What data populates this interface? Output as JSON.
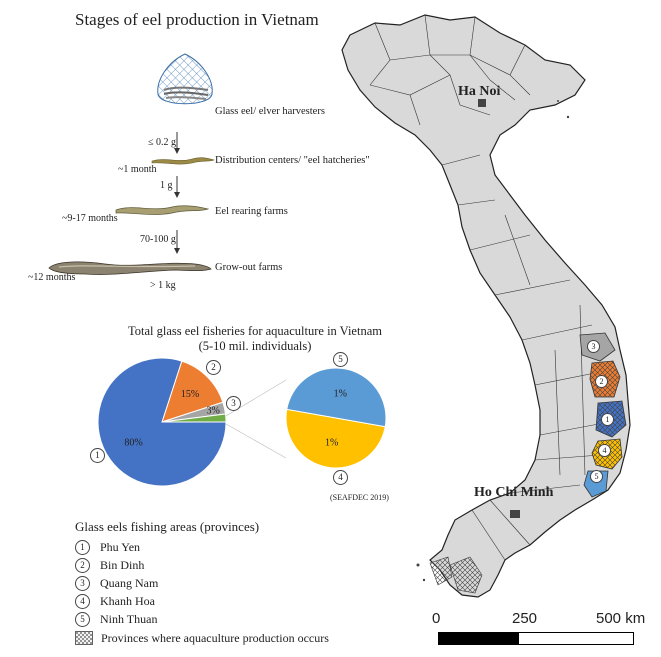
{
  "title": "Stages of eel production in Vietnam",
  "stages": [
    {
      "label": "Glass eel/ elver harvesters"
    },
    {
      "label": "Distribution centers/ \"eel hatcheries\"",
      "size": "≤ 0.2 g",
      "duration": "~1 month"
    },
    {
      "label": "Eel rearing farms",
      "size": "1 g",
      "duration": "~9-17 months"
    },
    {
      "label": "Grow-out farms",
      "size": "70-100 g",
      "duration": "~12 months",
      "final_size": "> 1 kg"
    }
  ],
  "pie_title_line1": "Total glass eel fisheries for aquaculture in Vietnam",
  "pie_title_line2": "(5-10 mil. individuals)",
  "source": "(SEAFDEC 2019)",
  "chart_data": [
    {
      "type": "pie",
      "slices": [
        {
          "id": "1",
          "value": 80,
          "label": "80%",
          "color": "#4472C4"
        },
        {
          "id": "2",
          "value": 15,
          "label": "15%",
          "color": "#ED7D31"
        },
        {
          "id": "3",
          "value": 3,
          "label": "3%",
          "color": "#A5A5A5"
        },
        {
          "id": "4+5",
          "value": 2,
          "label": "",
          "color": "#70AD47"
        }
      ]
    },
    {
      "type": "pie",
      "slices": [
        {
          "id": "5",
          "value": 1,
          "label": "1%",
          "color": "#5B9BD5"
        },
        {
          "id": "4",
          "value": 1,
          "label": "1%",
          "color": "#FFC000"
        }
      ]
    }
  ],
  "legend": {
    "title": "Glass eels fishing areas (provinces)",
    "items": [
      {
        "num": "1",
        "name": "Phu Yen"
      },
      {
        "num": "2",
        "name": "Bin Dinh"
      },
      {
        "num": "3",
        "name": "Quang Nam"
      },
      {
        "num": "4",
        "name": "Khanh Hoa"
      },
      {
        "num": "5",
        "name": "Ninh Thuan"
      }
    ],
    "hatch_label": "Provinces where aquaculture production occurs"
  },
  "map": {
    "cities": [
      "Ha Noi",
      "Ho Chi Minh"
    ],
    "province_markers": [
      "3",
      "2",
      "1",
      "4",
      "5"
    ],
    "scale_labels": [
      "0",
      "250",
      "500 km"
    ],
    "land_color": "#d9d9d9"
  }
}
